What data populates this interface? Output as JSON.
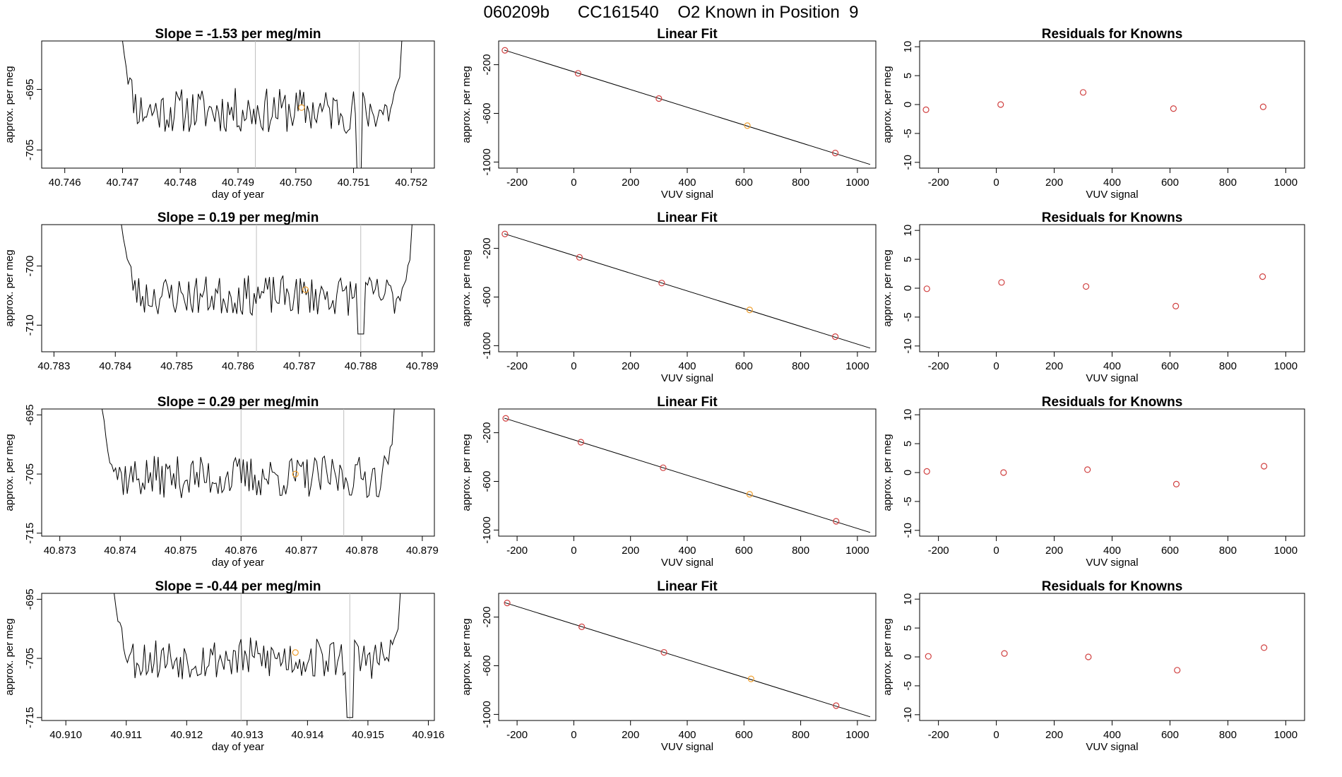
{
  "page": {
    "title": "060209b      CC161540    O2 Known in Position  9"
  },
  "chart_data": [
    {
      "type": "line",
      "panel": "timeseries",
      "title": "Slope =  -1.53  per meg/min",
      "xlabel": "day of year",
      "ylabel": "approx. per meg",
      "xlim": [
        40.7456,
        40.7524
      ],
      "ylim": [
        -708,
        -687
      ],
      "xticks": [
        "40.746",
        "40.747",
        "40.748",
        "40.749",
        "40.750",
        "40.751",
        "40.752"
      ],
      "xtick_values": [
        40.746,
        40.747,
        40.748,
        40.749,
        40.75,
        40.751,
        40.752
      ],
      "yticks": [
        "-695",
        "-705"
      ],
      "ytick_values": [
        -695,
        -705
      ],
      "vlines": [
        40.7493,
        40.7511
      ],
      "series_start": 40.747,
      "series_end": 40.7518,
      "series_mean": -698.5,
      "noise": 2.2,
      "left_edge": -687,
      "right_edge": -687,
      "dip": [
        40.7511,
        -710
      ],
      "marker": [
        40.7501,
        -698
      ],
      "marker_color": "#f0a030",
      "seed": 11
    },
    {
      "type": "line",
      "panel": "fit",
      "title": "Linear Fit",
      "xlabel": "VUV signal",
      "ylabel": "approx. per meg",
      "xlim": [
        -265,
        1065
      ],
      "ylim": [
        -1050,
        -5
      ],
      "xticks": [
        "-200",
        "0",
        "200",
        "400",
        "600",
        "800",
        "1000"
      ],
      "xtick_values": [
        -200,
        0,
        200,
        400,
        600,
        800,
        1000
      ],
      "yticks": [
        "-200",
        "-600",
        "-1000"
      ],
      "ytick_values": [
        -200,
        -600,
        -1000
      ],
      "fit_line": [
        [
          -245,
          -80
        ],
        [
          1045,
          -1020
        ]
      ],
      "points_x": [
        -243,
        15,
        300,
        612,
        922
      ],
      "points_y": [
        -82,
        -271,
        -478,
        -701,
        -926
      ],
      "point_colors": [
        "#d04040",
        "#d04040",
        "#d04040",
        "#f0a030",
        "#d04040"
      ]
    },
    {
      "type": "scatter",
      "panel": "residuals",
      "title": "Residuals for Knowns",
      "xlabel": "VUV signal",
      "ylabel": "approx. per meg",
      "xlim": [
        -265,
        1065
      ],
      "ylim": [
        -11,
        11
      ],
      "xticks": [
        "-200",
        "0",
        "200",
        "400",
        "600",
        "800",
        "1000"
      ],
      "xtick_values": [
        -200,
        0,
        200,
        400,
        600,
        800,
        1000
      ],
      "yticks": [
        "-10",
        "-5",
        "0",
        "5",
        "10"
      ],
      "ytick_values": [
        -10,
        -5,
        0,
        5,
        10
      ],
      "x": [
        -243,
        15,
        300,
        612,
        922
      ],
      "y": [
        -0.9,
        0.0,
        2.1,
        -0.7,
        -0.4
      ],
      "point_color": "#d04040"
    },
    {
      "type": "line",
      "panel": "timeseries",
      "title": "Slope =  0.19  per meg/min",
      "xlabel": "",
      "ylabel": "approx. per meg",
      "xlim": [
        40.7828,
        40.7892
      ],
      "ylim": [
        -714.5,
        -693
      ],
      "xticks": [
        "40.783",
        "40.784",
        "40.785",
        "40.786",
        "40.787",
        "40.788",
        "40.789"
      ],
      "xtick_values": [
        40.783,
        40.784,
        40.785,
        40.786,
        40.787,
        40.788,
        40.789
      ],
      "yticks": [
        "-700",
        "-710"
      ],
      "ytick_values": [
        -700,
        -710
      ],
      "vlines": [
        40.7863,
        40.788
      ],
      "series_start": 40.7841,
      "series_end": 40.7888,
      "series_mean": -705,
      "noise": 2.0,
      "left_edge": -693,
      "right_edge": -693,
      "dip": [
        40.788,
        -711.5
      ],
      "marker": [
        40.7871,
        -704
      ],
      "marker_color": "#f0a030",
      "seed": 23
    },
    {
      "type": "line",
      "panel": "fit",
      "title": "Linear Fit",
      "xlabel": "VUV signal",
      "ylabel": "approx. per meg",
      "xlim": [
        -265,
        1065
      ],
      "ylim": [
        -1050,
        -5
      ],
      "xticks": [
        "-200",
        "0",
        "200",
        "400",
        "600",
        "800",
        "1000"
      ],
      "xtick_values": [
        -200,
        0,
        200,
        400,
        600,
        800,
        1000
      ],
      "yticks": [
        "-200",
        "-600",
        "-1000"
      ],
      "ytick_values": [
        -200,
        -600,
        -1000
      ],
      "fit_line": [
        [
          -245,
          -80
        ],
        [
          1045,
          -1020
        ]
      ],
      "points_x": [
        -243,
        20,
        310,
        620,
        922
      ],
      "points_y": [
        -82,
        -274,
        -485,
        -706,
        -926
      ],
      "point_colors": [
        "#d04040",
        "#d04040",
        "#d04040",
        "#f0a030",
        "#d04040"
      ]
    },
    {
      "type": "scatter",
      "panel": "residuals",
      "title": "Residuals for Knowns",
      "xlabel": "VUV signal",
      "ylabel": "approx. per meg",
      "xlim": [
        -265,
        1065
      ],
      "ylim": [
        -11,
        11
      ],
      "xticks": [
        "-200",
        "0",
        "200",
        "400",
        "600",
        "800",
        "1000"
      ],
      "xtick_values": [
        -200,
        0,
        200,
        400,
        600,
        800,
        1000
      ],
      "yticks": [
        "-10",
        "-5",
        "0",
        "5",
        "10"
      ],
      "ytick_values": [
        -10,
        -5,
        0,
        5,
        10
      ],
      "x": [
        -240,
        18,
        310,
        620,
        920
      ],
      "y": [
        -0.1,
        1.0,
        0.3,
        -3.1,
        2.0
      ],
      "point_color": "#d04040"
    },
    {
      "type": "line",
      "panel": "timeseries",
      "title": "Slope =  0.29  per meg/min",
      "xlabel": "day of year",
      "ylabel": "approx. per meg",
      "xlim": [
        40.8727,
        40.8792
      ],
      "ylim": [
        -715.5,
        -694
      ],
      "xticks": [
        "40.873",
        "40.874",
        "40.875",
        "40.876",
        "40.877",
        "40.878",
        "40.879"
      ],
      "xtick_values": [
        40.873,
        40.874,
        40.875,
        40.876,
        40.877,
        40.878,
        40.879
      ],
      "yticks": [
        "-695",
        "-705",
        "-715"
      ],
      "ytick_values": [
        -695,
        -705,
        -715
      ],
      "vlines": [
        40.876,
        40.8777
      ],
      "series_start": 40.8737,
      "series_end": 40.8785,
      "series_mean": -705.5,
      "noise": 2.1,
      "left_edge": -694,
      "right_edge": -694,
      "dip": null,
      "marker": [
        40.8769,
        -705
      ],
      "marker_color": "#f0a030",
      "seed": 37
    },
    {
      "type": "line",
      "panel": "fit",
      "title": "Linear Fit",
      "xlabel": "VUV signal",
      "ylabel": "approx. per meg",
      "xlim": [
        -265,
        1065
      ],
      "ylim": [
        -1050,
        -5
      ],
      "xticks": [
        "-200",
        "0",
        "200",
        "400",
        "600",
        "800",
        "1000"
      ],
      "xtick_values": [
        -200,
        0,
        200,
        400,
        600,
        800,
        1000
      ],
      "yticks": [
        "-200",
        "-600",
        "-1000"
      ],
      "ytick_values": [
        -200,
        -600,
        -1000
      ],
      "fit_line": [
        [
          -245,
          -80
        ],
        [
          1045,
          -1020
        ]
      ],
      "points_x": [
        -240,
        25,
        315,
        620,
        925
      ],
      "points_y": [
        -82,
        -278,
        -488,
        -706,
        -928
      ],
      "point_colors": [
        "#d04040",
        "#d04040",
        "#d04040",
        "#f0a030",
        "#d04040"
      ]
    },
    {
      "type": "scatter",
      "panel": "residuals",
      "title": "Residuals for Knowns",
      "xlabel": "VUV signal",
      "ylabel": "approx. per meg",
      "xlim": [
        -265,
        1065
      ],
      "ylim": [
        -11,
        11
      ],
      "xticks": [
        "-200",
        "0",
        "200",
        "400",
        "600",
        "800",
        "1000"
      ],
      "xtick_values": [
        -200,
        0,
        200,
        400,
        600,
        800,
        1000
      ],
      "yticks": [
        "-10",
        "-5",
        "0",
        "5",
        "10"
      ],
      "ytick_values": [
        -10,
        -5,
        0,
        5,
        10
      ],
      "x": [
        -240,
        25,
        315,
        622,
        925
      ],
      "y": [
        0.2,
        0.0,
        0.5,
        -2.0,
        1.1
      ],
      "point_color": "#d04040"
    },
    {
      "type": "line",
      "panel": "timeseries",
      "title": "Slope =  -0.44  per meg/min",
      "xlabel": "day of year",
      "ylabel": "approx. per meg",
      "xlim": [
        40.9096,
        40.9161
      ],
      "ylim": [
        -715.5,
        -694
      ],
      "xticks": [
        "40.910",
        "40.911",
        "40.912",
        "40.913",
        "40.914",
        "40.915",
        "40.916"
      ],
      "xtick_values": [
        40.91,
        40.911,
        40.912,
        40.913,
        40.914,
        40.915,
        40.916
      ],
      "yticks": [
        "-695",
        "-705",
        "-715"
      ],
      "ytick_values": [
        -695,
        -705,
        -715
      ],
      "vlines": [
        40.9129,
        40.9147
      ],
      "series_start": 40.9108,
      "series_end": 40.9155,
      "series_mean": -705,
      "noise": 2.1,
      "left_edge": -694,
      "right_edge": -694,
      "dip": [
        40.9147,
        -715
      ],
      "marker": [
        40.9138,
        -704
      ],
      "marker_color": "#f0a030",
      "seed": 53
    },
    {
      "type": "line",
      "panel": "fit",
      "title": "Linear Fit",
      "xlabel": "VUV signal",
      "ylabel": "approx. per meg",
      "xlim": [
        -265,
        1065
      ],
      "ylim": [
        -1050,
        -5
      ],
      "xticks": [
        "-200",
        "0",
        "200",
        "400",
        "600",
        "800",
        "1000"
      ],
      "xtick_values": [
        -200,
        0,
        200,
        400,
        600,
        800,
        1000
      ],
      "yticks": [
        "-200",
        "-600",
        "-1000"
      ],
      "ytick_values": [
        -200,
        -600,
        -1000
      ],
      "fit_line": [
        [
          -245,
          -80
        ],
        [
          1045,
          -1020
        ]
      ],
      "points_x": [
        -235,
        28,
        318,
        625,
        925
      ],
      "points_y": [
        -84,
        -280,
        -490,
        -708,
        -928
      ],
      "point_colors": [
        "#d04040",
        "#d04040",
        "#d04040",
        "#f0a030",
        "#d04040"
      ]
    },
    {
      "type": "scatter",
      "panel": "residuals",
      "title": "Residuals for Knowns",
      "xlabel": "VUV signal",
      "ylabel": "approx. per meg",
      "xlim": [
        -265,
        1065
      ],
      "ylim": [
        -11,
        11
      ],
      "xticks": [
        "-200",
        "0",
        "200",
        "400",
        "600",
        "800",
        "1000"
      ],
      "xtick_values": [
        -200,
        0,
        200,
        400,
        600,
        800,
        1000
      ],
      "yticks": [
        "-10",
        "-5",
        "0",
        "5",
        "10"
      ],
      "ytick_values": [
        -10,
        -5,
        0,
        5,
        10
      ],
      "x": [
        -235,
        28,
        318,
        625,
        925
      ],
      "y": [
        0.1,
        0.6,
        0.0,
        -2.3,
        1.6
      ],
      "point_color": "#d04040"
    }
  ]
}
